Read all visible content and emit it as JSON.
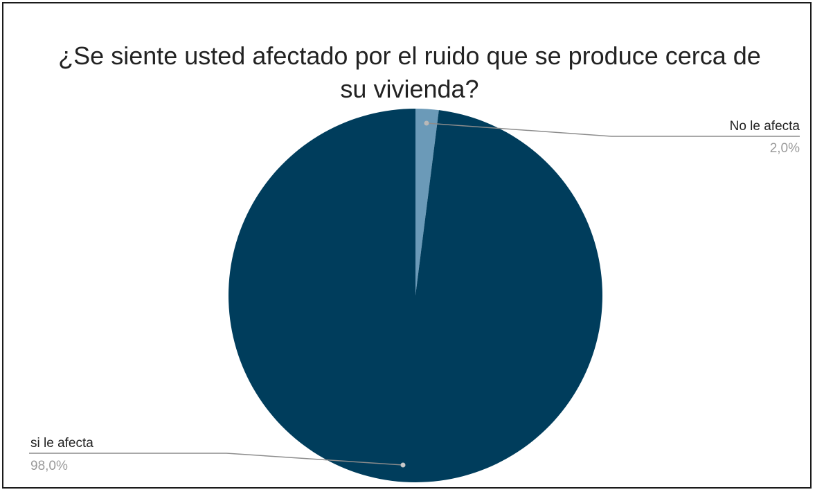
{
  "chart_data": {
    "type": "pie",
    "title_lines": [
      "¿Se siente usted afectado por el ruido que se produce cerca de",
      "su vivienda?"
    ],
    "slices": [
      {
        "name": "No le afecta",
        "value": 2.0,
        "label": "2,0%",
        "color": "#6b9ab8"
      },
      {
        "name": "si le afecta",
        "value": 98.0,
        "label": "98,0%",
        "color": "#003d5c"
      }
    ],
    "legend": "none",
    "label_placement": "outside-with-leader-lines"
  }
}
